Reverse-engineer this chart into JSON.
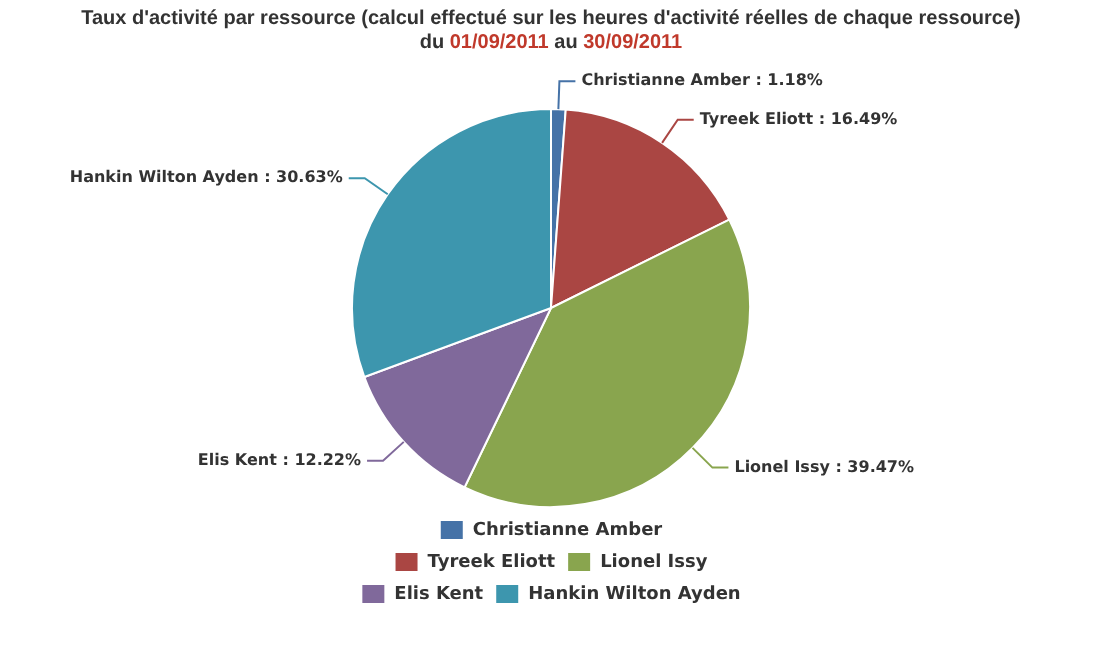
{
  "chart_data": {
    "type": "pie",
    "title": "Taux d'activité par ressource (calcul effectué sur les heures d'activité réelles de chaque ressource)",
    "subtitle": "du 01/09/2011 au 30/09/2011",
    "categories": [
      "Christianne Amber",
      "Tyreek Eliott",
      "Lionel Issy",
      "Elis Kent",
      "Hankin Wilton Ayden"
    ],
    "values": [
      1.18,
      16.49,
      39.47,
      12.22,
      30.63
    ],
    "colors": [
      "#4572a7",
      "#aa4643",
      "#89a54e",
      "#80699b",
      "#3d96ae"
    ],
    "value_labels": [
      "Christianne Amber : 1.18%",
      "Tyreek Eliott : 16.49%",
      "Lionel Issy : 39.47%",
      "Elis Kent : 12.22%",
      "Hankin Wilton Ayden : 30.63%"
    ],
    "legend": "bottom"
  }
}
